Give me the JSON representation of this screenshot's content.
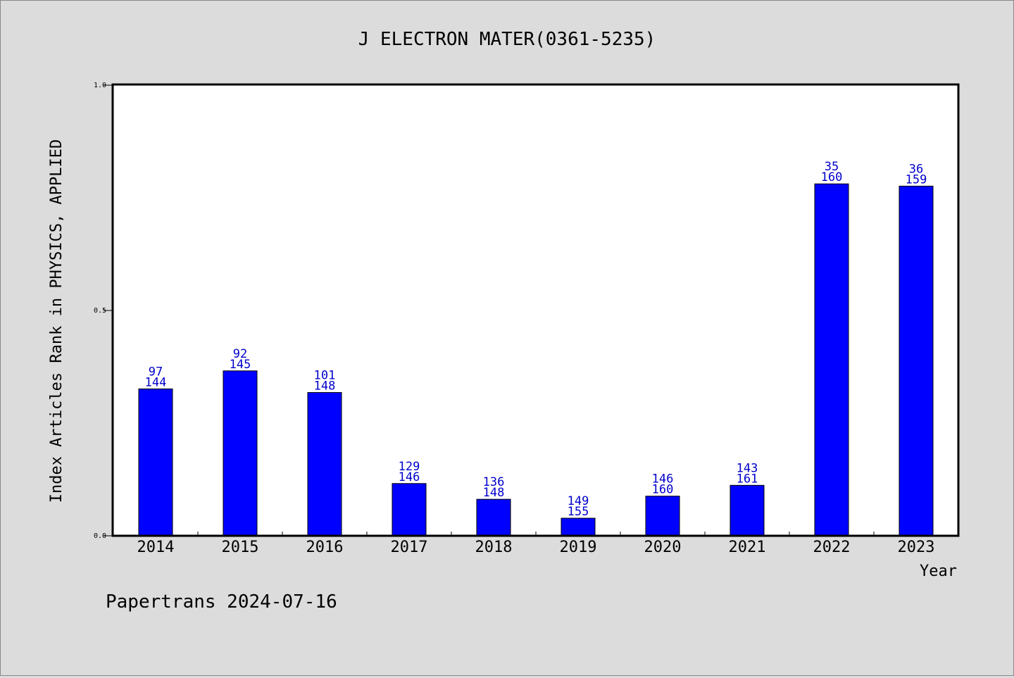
{
  "chart_data": {
    "type": "bar",
    "title": "J ELECTRON MATER(0361-5235)",
    "xlabel": "Year",
    "ylabel": "Index Articles Rank in PHYSICS, APPLIED",
    "footer": "Papertrans 2024-07-16",
    "ylim": [
      0,
      1.0
    ],
    "yticks": [
      "0.0",
      "0.5",
      "1.0"
    ],
    "ytick_values": [
      0,
      0.5,
      1.0
    ],
    "grid": false,
    "bar_color": "#0000ff",
    "label_color": "#0000cc",
    "categories": [
      "2014",
      "2015",
      "2016",
      "2017",
      "2018",
      "2019",
      "2020",
      "2021",
      "2022",
      "2023"
    ],
    "values": [
      0.326,
      0.366,
      0.318,
      0.116,
      0.081,
      0.039,
      0.088,
      0.112,
      0.781,
      0.776
    ],
    "labels_top": [
      "97",
      "92",
      "101",
      "129",
      "136",
      "149",
      "146",
      "143",
      "35",
      "36"
    ],
    "labels_bottom": [
      "144",
      "145",
      "148",
      "146",
      "148",
      "155",
      "160",
      "161",
      "160",
      "159"
    ]
  }
}
